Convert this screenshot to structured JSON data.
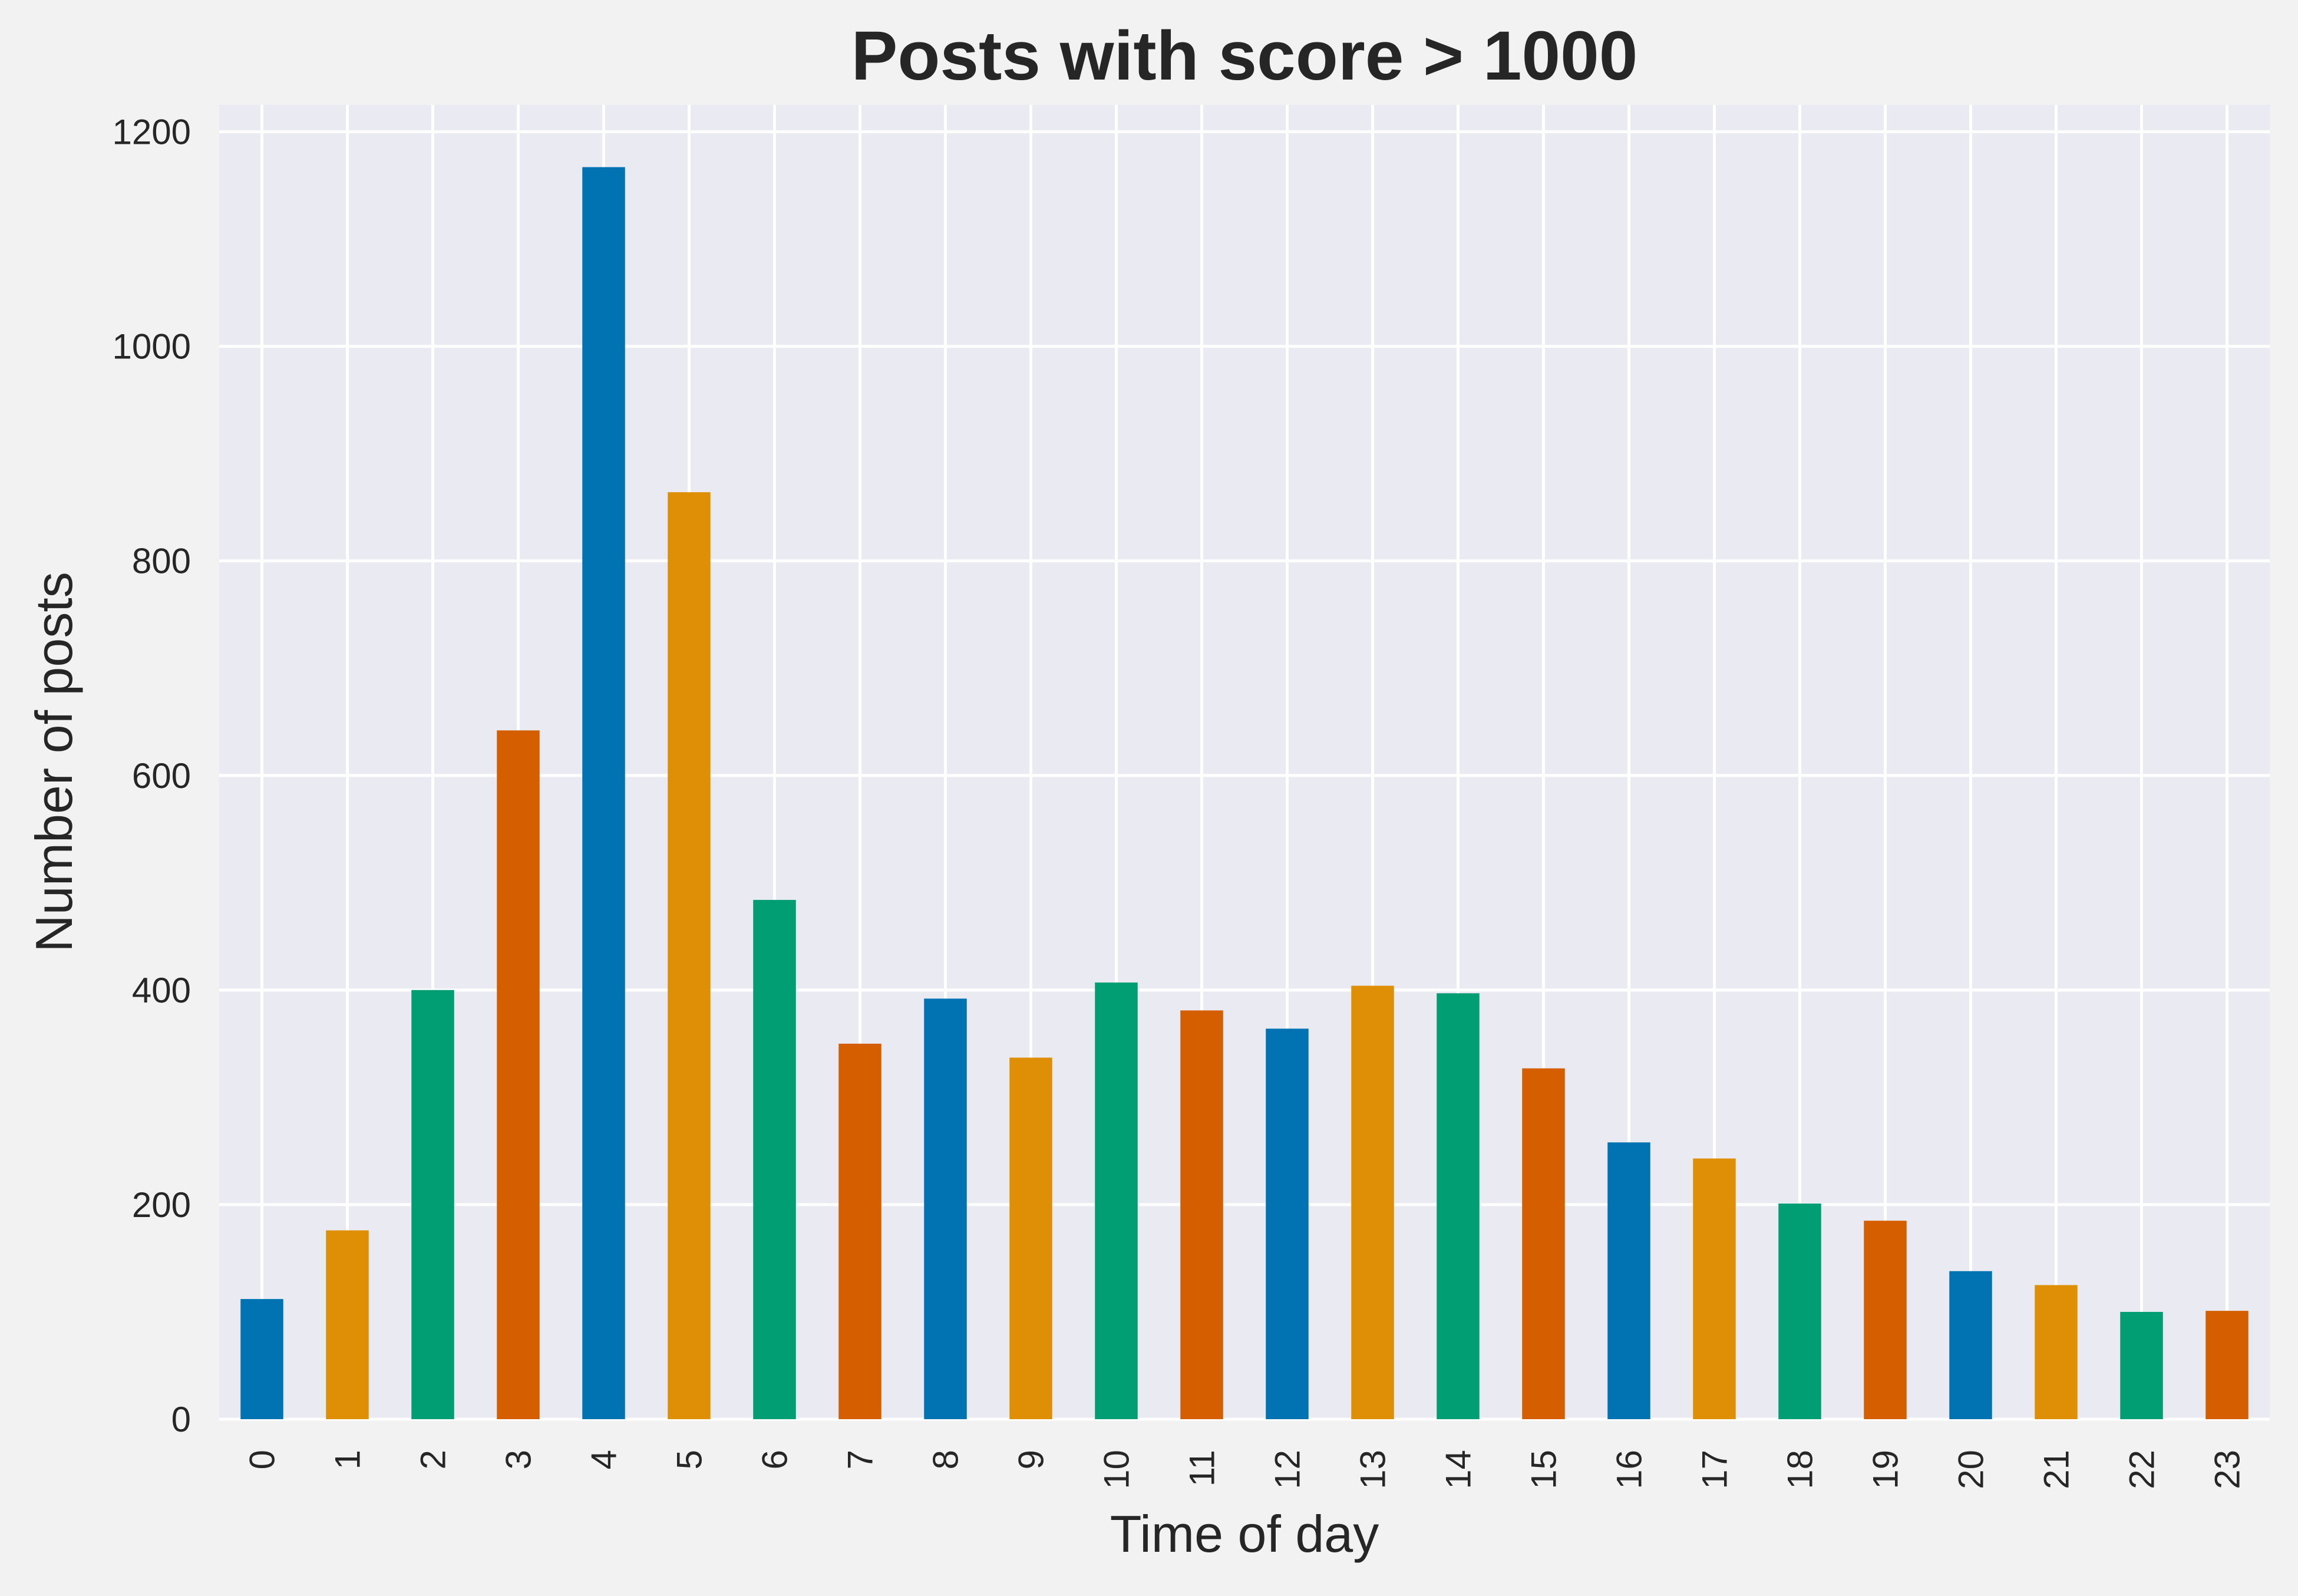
{
  "chart_data": {
    "type": "bar",
    "title": "Posts with score > 1000",
    "xlabel": "Time of day",
    "ylabel": "Number of posts",
    "categories": [
      "0",
      "1",
      "2",
      "3",
      "4",
      "5",
      "6",
      "7",
      "8",
      "9",
      "10",
      "11",
      "12",
      "13",
      "14",
      "15",
      "16",
      "17",
      "18",
      "19",
      "20",
      "21",
      "22",
      "23"
    ],
    "values": [
      112,
      176,
      400,
      642,
      1167,
      864,
      484,
      350,
      392,
      337,
      407,
      381,
      364,
      404,
      397,
      327,
      258,
      243,
      201,
      185,
      138,
      125,
      100,
      101
    ],
    "yticks": [
      "0",
      "200",
      "400",
      "600",
      "800",
      "1000",
      "1200"
    ],
    "ylim": [
      0,
      1225
    ],
    "grid": true,
    "legend": "none",
    "colors": {
      "palette": [
        "#0173b2",
        "#de8f05",
        "#029e73",
        "#d55e00"
      ],
      "plot_background": "#eaeaf2",
      "figure_background": "#f2f2f2",
      "grid": "#ffffff"
    }
  }
}
